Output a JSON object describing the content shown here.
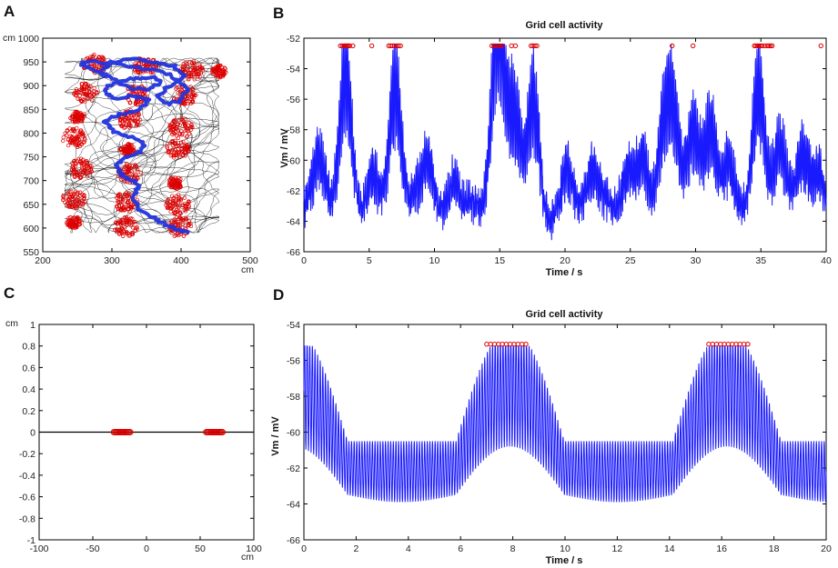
{
  "chart_data": [
    {
      "panel": "A",
      "type": "scatter",
      "description_units": "cm",
      "x_unit_label": "cm",
      "y_unit_label": "cm",
      "xlim": [
        200,
        500
      ],
      "ylim": [
        550,
        1000
      ],
      "xticks": [
        200,
        300,
        400,
        500
      ],
      "yticks": [
        550,
        600,
        650,
        700,
        750,
        800,
        850,
        900,
        950,
        1000
      ],
      "series": [
        {
          "name": "trajectory",
          "color": "#000000"
        },
        {
          "name": "spikes",
          "color": "#dd0000",
          "fields": [
            [
              275,
              945
            ],
            [
              348,
              940
            ],
            [
              415,
              932
            ],
            [
              455,
              930
            ],
            [
              262,
              885
            ],
            [
              335,
              880
            ],
            [
              405,
              880
            ],
            [
              250,
              835
            ],
            [
              325,
              830
            ],
            [
              400,
              810
            ],
            [
              245,
              790
            ],
            [
              322,
              765
            ],
            [
              395,
              765
            ],
            [
              255,
              725
            ],
            [
              325,
              715
            ],
            [
              392,
              695
            ],
            [
              245,
              660
            ],
            [
              320,
              655
            ],
            [
              395,
              650
            ],
            [
              245,
              612
            ],
            [
              320,
              602
            ],
            [
              398,
              602
            ]
          ]
        },
        {
          "name": "path",
          "color": "#2233dd"
        }
      ]
    },
    {
      "panel": "B",
      "type": "line",
      "title": "Grid cell activity",
      "xlabel": "Time / s",
      "ylabel": "Vm / mV",
      "xlim": [
        0,
        40
      ],
      "ylim": [
        -66,
        -52
      ],
      "xticks": [
        0,
        5,
        10,
        15,
        20,
        25,
        30,
        35,
        40
      ],
      "yticks": [
        -66,
        -64,
        -62,
        -60,
        -58,
        -56,
        -54,
        -52
      ],
      "bumps": [
        [
          3.2,
          -53.2
        ],
        [
          7.0,
          -53.5
        ],
        [
          14.8,
          -55.3
        ],
        [
          16.1,
          -56.2
        ],
        [
          17.6,
          -54.8
        ],
        [
          15.0,
          -56.0
        ],
        [
          20.2,
          -60.0
        ],
        [
          22.0,
          -61.0
        ],
        [
          24.8,
          -60.2
        ],
        [
          26.0,
          -58.6
        ],
        [
          27.5,
          -57.3
        ],
        [
          28.3,
          -56.5
        ],
        [
          29.8,
          -57.4
        ],
        [
          31.2,
          -57.5
        ],
        [
          32.5,
          -58.7
        ],
        [
          34.8,
          -53.2
        ],
        [
          36.5,
          -59.5
        ],
        [
          38.2,
          -59.0
        ],
        [
          39.5,
          -60.0
        ],
        [
          5.2,
          -59.5
        ],
        [
          9.5,
          -60.0
        ],
        [
          11.5,
          -61.0
        ],
        [
          12.8,
          -61.5
        ],
        [
          1.2,
          -60.0
        ]
      ],
      "spike_level": -52.5,
      "spike_times": [
        2.8,
        2.95,
        3.1,
        3.2,
        3.3,
        3.4,
        3.5,
        3.75,
        5.2,
        6.5,
        6.65,
        6.8,
        6.95,
        7.1,
        7.25,
        7.4,
        14.4,
        14.55,
        14.7,
        14.85,
        15.0,
        15.2,
        15.9,
        16.2,
        17.4,
        17.55,
        17.7,
        17.85,
        28.2,
        29.8,
        34.5,
        34.62,
        34.74,
        34.86,
        34.98,
        35.1,
        35.3,
        35.5,
        35.62,
        35.74,
        35.86,
        39.6
      ]
    },
    {
      "panel": "C",
      "type": "scatter",
      "x_unit_label": "cm",
      "y_unit_label": "cm",
      "xlim": [
        -100,
        100
      ],
      "ylim": [
        -1,
        1
      ],
      "xticks": [
        -100,
        -50,
        0,
        50,
        100
      ],
      "yticks": [
        -1,
        -0.8,
        -0.6,
        -0.4,
        -0.2,
        0,
        0.2,
        0.4,
        0.6,
        0.8,
        1
      ],
      "path_y": 0,
      "spike_clusters": [
        [
          -30,
          -15
        ],
        [
          56,
          71
        ]
      ]
    },
    {
      "panel": "D",
      "type": "line",
      "title": "Grid cell activity",
      "xlabel": "Time / s",
      "ylabel": "Vm / mV",
      "xlim": [
        0,
        20
      ],
      "ylim": [
        -66,
        -54
      ],
      "xticks": [
        0,
        2,
        4,
        6,
        8,
        10,
        12,
        14,
        16,
        18,
        20
      ],
      "yticks": [
        -66,
        -64,
        -62,
        -60,
        -58,
        -56,
        -54
      ],
      "envelope_peaks": [
        [
          7.9,
          -55.2
        ],
        [
          16.2,
          -55.2
        ]
      ],
      "oscillation_hz": 10,
      "spike_level": -55.1,
      "spike_times": [
        7.0,
        7.15,
        7.3,
        7.45,
        7.6,
        7.75,
        7.9,
        8.05,
        8.2,
        8.35,
        8.5,
        15.5,
        15.65,
        15.8,
        15.95,
        16.1,
        16.25,
        16.4,
        16.55,
        16.7,
        16.85,
        17.0
      ]
    }
  ],
  "labels": {
    "panel_a": "A",
    "panel_b": "B",
    "panel_c": "C",
    "panel_d": "D",
    "unit_cm": "cm",
    "title_b": "Grid cell activity",
    "title_d": "Grid cell activity",
    "xlabel": "Time / s",
    "ylabel": "Vm / mV"
  },
  "colors": {
    "trace": "#1a1aff",
    "spike": "#dd0000",
    "trajectory": "#000000",
    "path": "#2233dd",
    "axis": "#000000"
  }
}
